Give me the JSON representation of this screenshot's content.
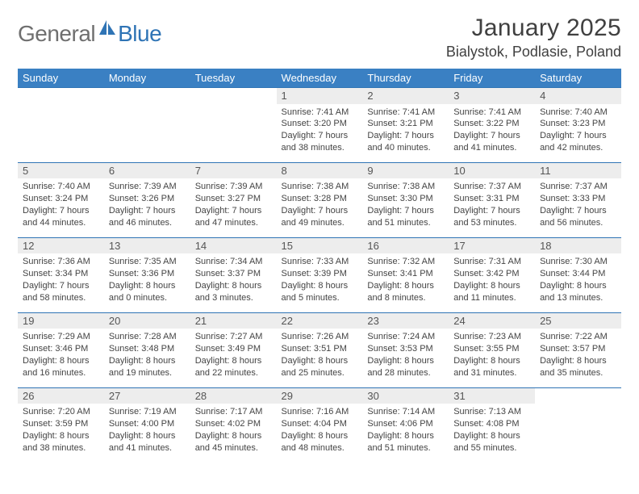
{
  "logo": {
    "word1": "General",
    "word2": "Blue"
  },
  "title": "January 2025",
  "location": "Bialystok, Podlasie, Poland",
  "colors": {
    "header_bg": "#3a80c3",
    "header_text": "#ffffff",
    "daynum_bg": "#ededed",
    "row_border": "#2f74b5",
    "logo_gray": "#6f6f6f",
    "logo_blue": "#2f74b5",
    "text": "#404040"
  },
  "day_headers": [
    "Sunday",
    "Monday",
    "Tuesday",
    "Wednesday",
    "Thursday",
    "Friday",
    "Saturday"
  ],
  "weeks": [
    [
      null,
      null,
      null,
      {
        "n": "1",
        "sr": "Sunrise: 7:41 AM",
        "ss": "Sunset: 3:20 PM",
        "dl": "Daylight: 7 hours and 38 minutes."
      },
      {
        "n": "2",
        "sr": "Sunrise: 7:41 AM",
        "ss": "Sunset: 3:21 PM",
        "dl": "Daylight: 7 hours and 40 minutes."
      },
      {
        "n": "3",
        "sr": "Sunrise: 7:41 AM",
        "ss": "Sunset: 3:22 PM",
        "dl": "Daylight: 7 hours and 41 minutes."
      },
      {
        "n": "4",
        "sr": "Sunrise: 7:40 AM",
        "ss": "Sunset: 3:23 PM",
        "dl": "Daylight: 7 hours and 42 minutes."
      }
    ],
    [
      {
        "n": "5",
        "sr": "Sunrise: 7:40 AM",
        "ss": "Sunset: 3:24 PM",
        "dl": "Daylight: 7 hours and 44 minutes."
      },
      {
        "n": "6",
        "sr": "Sunrise: 7:39 AM",
        "ss": "Sunset: 3:26 PM",
        "dl": "Daylight: 7 hours and 46 minutes."
      },
      {
        "n": "7",
        "sr": "Sunrise: 7:39 AM",
        "ss": "Sunset: 3:27 PM",
        "dl": "Daylight: 7 hours and 47 minutes."
      },
      {
        "n": "8",
        "sr": "Sunrise: 7:38 AM",
        "ss": "Sunset: 3:28 PM",
        "dl": "Daylight: 7 hours and 49 minutes."
      },
      {
        "n": "9",
        "sr": "Sunrise: 7:38 AM",
        "ss": "Sunset: 3:30 PM",
        "dl": "Daylight: 7 hours and 51 minutes."
      },
      {
        "n": "10",
        "sr": "Sunrise: 7:37 AM",
        "ss": "Sunset: 3:31 PM",
        "dl": "Daylight: 7 hours and 53 minutes."
      },
      {
        "n": "11",
        "sr": "Sunrise: 7:37 AM",
        "ss": "Sunset: 3:33 PM",
        "dl": "Daylight: 7 hours and 56 minutes."
      }
    ],
    [
      {
        "n": "12",
        "sr": "Sunrise: 7:36 AM",
        "ss": "Sunset: 3:34 PM",
        "dl": "Daylight: 7 hours and 58 minutes."
      },
      {
        "n": "13",
        "sr": "Sunrise: 7:35 AM",
        "ss": "Sunset: 3:36 PM",
        "dl": "Daylight: 8 hours and 0 minutes."
      },
      {
        "n": "14",
        "sr": "Sunrise: 7:34 AM",
        "ss": "Sunset: 3:37 PM",
        "dl": "Daylight: 8 hours and 3 minutes."
      },
      {
        "n": "15",
        "sr": "Sunrise: 7:33 AM",
        "ss": "Sunset: 3:39 PM",
        "dl": "Daylight: 8 hours and 5 minutes."
      },
      {
        "n": "16",
        "sr": "Sunrise: 7:32 AM",
        "ss": "Sunset: 3:41 PM",
        "dl": "Daylight: 8 hours and 8 minutes."
      },
      {
        "n": "17",
        "sr": "Sunrise: 7:31 AM",
        "ss": "Sunset: 3:42 PM",
        "dl": "Daylight: 8 hours and 11 minutes."
      },
      {
        "n": "18",
        "sr": "Sunrise: 7:30 AM",
        "ss": "Sunset: 3:44 PM",
        "dl": "Daylight: 8 hours and 13 minutes."
      }
    ],
    [
      {
        "n": "19",
        "sr": "Sunrise: 7:29 AM",
        "ss": "Sunset: 3:46 PM",
        "dl": "Daylight: 8 hours and 16 minutes."
      },
      {
        "n": "20",
        "sr": "Sunrise: 7:28 AM",
        "ss": "Sunset: 3:48 PM",
        "dl": "Daylight: 8 hours and 19 minutes."
      },
      {
        "n": "21",
        "sr": "Sunrise: 7:27 AM",
        "ss": "Sunset: 3:49 PM",
        "dl": "Daylight: 8 hours and 22 minutes."
      },
      {
        "n": "22",
        "sr": "Sunrise: 7:26 AM",
        "ss": "Sunset: 3:51 PM",
        "dl": "Daylight: 8 hours and 25 minutes."
      },
      {
        "n": "23",
        "sr": "Sunrise: 7:24 AM",
        "ss": "Sunset: 3:53 PM",
        "dl": "Daylight: 8 hours and 28 minutes."
      },
      {
        "n": "24",
        "sr": "Sunrise: 7:23 AM",
        "ss": "Sunset: 3:55 PM",
        "dl": "Daylight: 8 hours and 31 minutes."
      },
      {
        "n": "25",
        "sr": "Sunrise: 7:22 AM",
        "ss": "Sunset: 3:57 PM",
        "dl": "Daylight: 8 hours and 35 minutes."
      }
    ],
    [
      {
        "n": "26",
        "sr": "Sunrise: 7:20 AM",
        "ss": "Sunset: 3:59 PM",
        "dl": "Daylight: 8 hours and 38 minutes."
      },
      {
        "n": "27",
        "sr": "Sunrise: 7:19 AM",
        "ss": "Sunset: 4:00 PM",
        "dl": "Daylight: 8 hours and 41 minutes."
      },
      {
        "n": "28",
        "sr": "Sunrise: 7:17 AM",
        "ss": "Sunset: 4:02 PM",
        "dl": "Daylight: 8 hours and 45 minutes."
      },
      {
        "n": "29",
        "sr": "Sunrise: 7:16 AM",
        "ss": "Sunset: 4:04 PM",
        "dl": "Daylight: 8 hours and 48 minutes."
      },
      {
        "n": "30",
        "sr": "Sunrise: 7:14 AM",
        "ss": "Sunset: 4:06 PM",
        "dl": "Daylight: 8 hours and 51 minutes."
      },
      {
        "n": "31",
        "sr": "Sunrise: 7:13 AM",
        "ss": "Sunset: 4:08 PM",
        "dl": "Daylight: 8 hours and 55 minutes."
      },
      null
    ]
  ]
}
